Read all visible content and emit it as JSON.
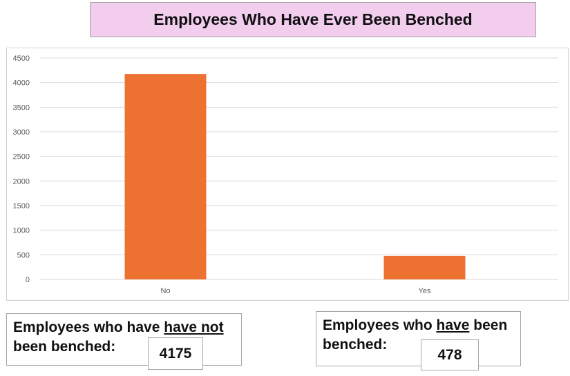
{
  "title": "Employees Who Have Ever Been Benched",
  "chart_data": {
    "type": "bar",
    "title": "Employees Who Have Ever Been Benched",
    "categories": [
      "No",
      "Yes"
    ],
    "values": [
      4175,
      478
    ],
    "ylim": [
      0,
      4500
    ],
    "yticks": [
      0,
      500,
      1000,
      1500,
      2000,
      2500,
      3000,
      3500,
      4000,
      4500
    ],
    "grid": true,
    "bar_color": "#ed7130"
  },
  "stats": {
    "not_benched": {
      "prefix": "Employees who have ",
      "emphasis": "have not",
      "suffix": "",
      "line2": "been benched:",
      "value": "4175"
    },
    "benched": {
      "prefix": "Employees who ",
      "emphasis": "have",
      "suffix": " been",
      "line2": "benched:",
      "value": "478"
    }
  }
}
